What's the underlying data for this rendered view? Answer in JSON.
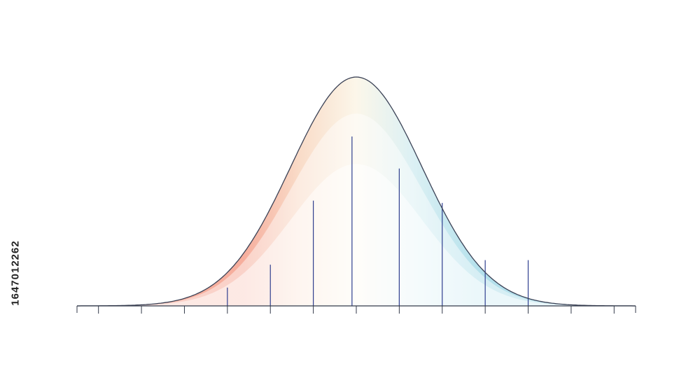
{
  "side_label": "1647012262",
  "colors": {
    "background": "#ffffff",
    "left_tail": "#f4a08c",
    "left_mid": "#f8d6bf",
    "center": "#fbf5e6",
    "right_mid": "#d6eef2",
    "right_tail": "#a7dbe8",
    "curve_stroke": "#3b4256",
    "divider": "#2f3f8f",
    "axis": "#333a4a"
  },
  "chart_data": {
    "type": "area",
    "title": "",
    "xlabel": "",
    "ylabel": "",
    "distribution": "normal",
    "mean": 0,
    "std_dev": 1,
    "xlim": [
      -6.5,
      6.5
    ],
    "ylim": [
      0,
      1
    ],
    "grid": false,
    "legend": "none",
    "peak_value": 1,
    "inner_band_peaks": [
      0.84,
      0.62
    ],
    "axis_ticks": [
      -6,
      -5,
      -4,
      -3,
      -2,
      -1,
      0,
      1,
      2,
      3,
      4,
      5,
      6
    ],
    "tick_labels": [],
    "dividers": [
      {
        "x": -4,
        "height": 0.0
      },
      {
        "x": -3,
        "height": 0.08
      },
      {
        "x": -2,
        "height": 0.18
      },
      {
        "x": -1,
        "height": 0.46
      },
      {
        "x": -0.1,
        "height": 0.74
      },
      {
        "x": 1,
        "height": 0.6
      },
      {
        "x": 2,
        "height": 0.45
      },
      {
        "x": 3,
        "height": 0.2
      },
      {
        "x": 4,
        "height": 0.2
      }
    ]
  }
}
